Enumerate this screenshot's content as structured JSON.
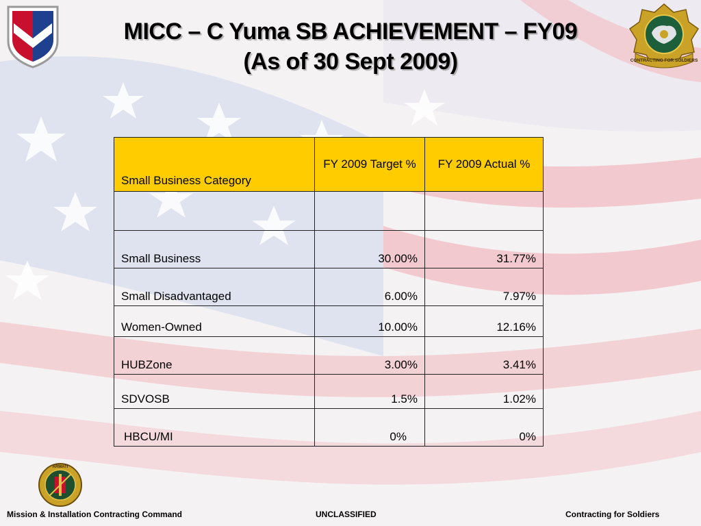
{
  "title": {
    "line1": "MICC – C Yuma SB ACHIEVEMENT – FY09",
    "line2": "(As of 30 Sept 2009)"
  },
  "table": {
    "headers": [
      "Small Business Category",
      "FY 2009 Target %",
      "FY 2009 Actual %"
    ],
    "rows": [
      {
        "category": "",
        "target": "",
        "actual": ""
      },
      {
        "category": "Small Business",
        "target": "30.00%",
        "actual": "31.77%"
      },
      {
        "category": "Small Disadvantaged",
        "target": "6.00%",
        "actual": "7.97%"
      },
      {
        "category": "Women-Owned",
        "target": "10.00%",
        "actual": "12.16%"
      },
      {
        "category": "HUBZone",
        "target": "3.00%",
        "actual": "3.41%"
      },
      {
        "category": "SDVOSB",
        "target": "1.5%",
        "actual": "1.02%"
      },
      {
        "category": "HBCU/MI",
        "target": "0%",
        "actual": "0%"
      }
    ],
    "header_color": "#ffcc00"
  },
  "logos": {
    "left": "army-materiel-command-emblem-icon",
    "right": "contracting-for-soldiers-seal-icon",
    "right_text": "CONTRACTING FOR SOLDIERS",
    "bottom": "armati-comparamus-crest-icon",
    "bottom_text": "ARMATI COMPARAMUS"
  },
  "footer": {
    "left": "Mission & Installation Contracting Command",
    "center": "UNCLASSIFIED",
    "right": "Contracting for Soldiers"
  },
  "colors": {
    "stripe_red": "#f2c7cc",
    "canton_blue": "#cfd8ec",
    "title_text": "#000000"
  }
}
